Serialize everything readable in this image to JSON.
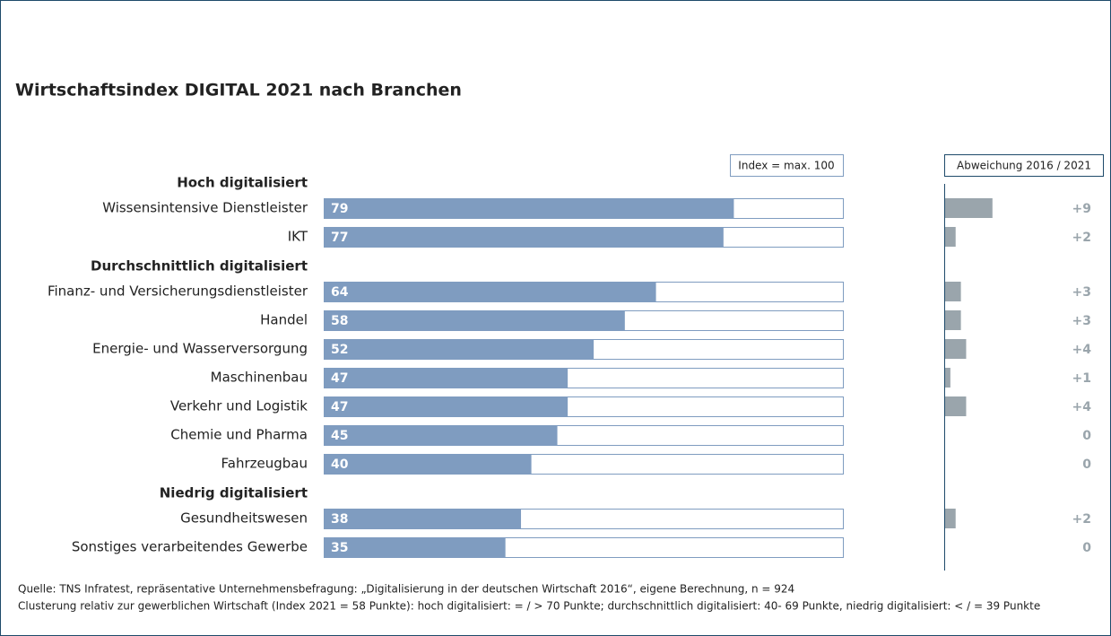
{
  "chart_data": {
    "type": "bar",
    "title": "Wirtschaftsindex DIGITAL 2021 nach Branchen",
    "annotations": [
      "Index = max. 100",
      "Abweichung 2016 / 2021"
    ],
    "xlim": [
      0,
      100
    ],
    "x2lim": [
      0,
      30
    ],
    "color": "#7f9cc0",
    "change_color": "#9aa5ac",
    "groups": [
      {
        "name": "Hoch digitalisiert",
        "categories": [
          "Wissensintensive Dienstleister",
          "IKT"
        ],
        "values": [
          79,
          77
        ],
        "changes": [
          9,
          2
        ],
        "change_labels": [
          "+9",
          "+2"
        ]
      },
      {
        "name": "Durchschnittlich digitalisiert",
        "categories": [
          "Finanz- und Versicherungsdienstleister",
          "Handel",
          "Energie- und Wasserversorgung",
          "Maschinenbau",
          "Verkehr und Logistik",
          "Chemie und Pharma",
          "Fahrzeugbau"
        ],
        "values": [
          64,
          58,
          52,
          47,
          47,
          45,
          40
        ],
        "changes": [
          3,
          3,
          4,
          1,
          4,
          0,
          0
        ],
        "change_labels": [
          "+3",
          "+3",
          "+4",
          "+1",
          "+4",
          "0",
          "0"
        ]
      },
      {
        "name": "Niedrig digitalisiert",
        "categories": [
          "Gesundheitswesen",
          "Sonstiges verarbeitendes Gewerbe"
        ],
        "values": [
          38,
          35
        ],
        "changes": [
          2,
          0
        ],
        "change_labels": [
          "+2",
          "0"
        ]
      }
    ],
    "source": "Quelle: TNS Infratest, repräsentative  Unternehmensbefragung: „Digitalisierung in der deutschen Wirtschaft 2016“, eigene Berechnung, n = 924",
    "note": "Clusterung relativ zur gewerblichen Wirtschaft (Index 2021 = 58 Punkte): hoch digitalisiert:  = / > 70 Punkte; durchschnittlich digitalisiert: 40- 69 Punkte, niedrig digitalisiert: < / = 39 Punkte"
  }
}
